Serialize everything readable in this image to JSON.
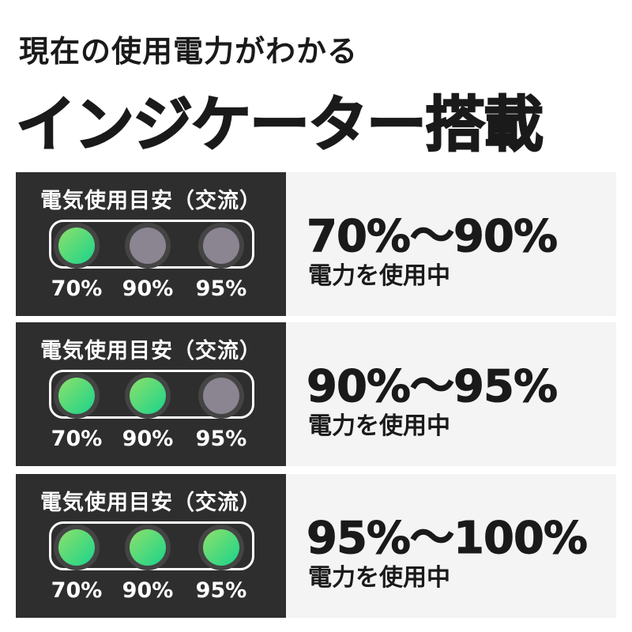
{
  "header": {
    "subtitle": "現在の使用電力がわかる",
    "title": "インジケーター搭載"
  },
  "colors": {
    "on": "#19d48c",
    "off": "#8a8590",
    "panel": "#2e2e2e"
  },
  "rows": [
    {
      "caption": "電気使用目安（交流）",
      "labels": [
        "70%",
        "90%",
        "95%"
      ],
      "lit": [
        true,
        false,
        false
      ],
      "range": "70%〜90%",
      "status": "電力を使用中"
    },
    {
      "caption": "電気使用目安（交流）",
      "labels": [
        "70%",
        "90%",
        "95%"
      ],
      "lit": [
        true,
        true,
        false
      ],
      "range": "90%〜95%",
      "status": "電力を使用中"
    },
    {
      "caption": "電気使用目安（交流）",
      "labels": [
        "70%",
        "90%",
        "95%"
      ],
      "lit": [
        true,
        true,
        true
      ],
      "range": "95%〜100%",
      "status": "電力を使用中"
    }
  ]
}
